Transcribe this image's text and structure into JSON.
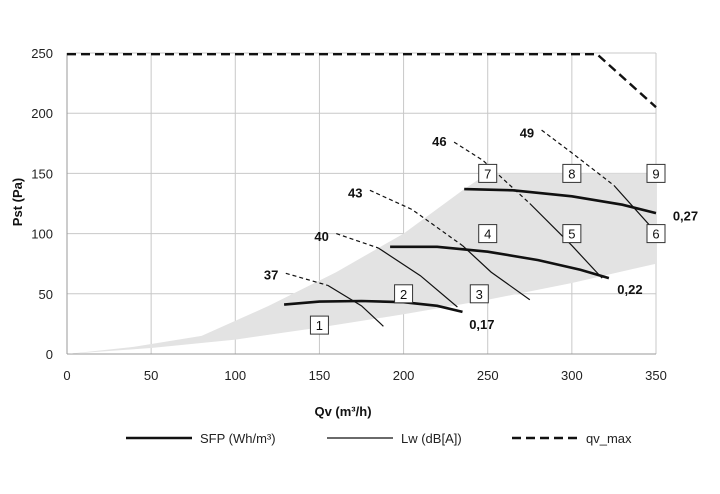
{
  "chart_data": {
    "type": "line",
    "title": "",
    "xlabel": "Qv (m³/h)",
    "ylabel": "Pst (Pa)",
    "xlim": [
      0,
      350
    ],
    "ylim": [
      0,
      250
    ],
    "xticks": [
      "0",
      "50",
      "100",
      "150",
      "200",
      "250",
      "300",
      "350"
    ],
    "yticks": [
      "0",
      "50",
      "100",
      "150",
      "200",
      "250"
    ],
    "grid": true,
    "legend_position": "bottom",
    "operating_area": {
      "upper": [
        [
          0,
          0
        ],
        [
          40,
          6
        ],
        [
          80,
          15
        ],
        [
          120,
          40
        ],
        [
          160,
          68
        ],
        [
          200,
          100
        ],
        [
          236,
          137
        ],
        [
          250,
          150
        ],
        [
          350,
          150
        ]
      ],
      "lower": [
        [
          350,
          75
        ],
        [
          300,
          59
        ],
        [
          250,
          45
        ],
        [
          200,
          33
        ],
        [
          150,
          22
        ],
        [
          100,
          12
        ],
        [
          50,
          5
        ],
        [
          0,
          0
        ]
      ],
      "color": "#e3e3e3"
    },
    "series": [
      {
        "name": "SFP (Wh/m³)",
        "style": "thick",
        "curves": [
          {
            "label": "0,17",
            "points": [
              [
                129,
                41
              ],
              [
                150,
                43.5
              ],
              [
                175,
                44
              ],
              [
                200,
                43
              ],
              [
                220,
                40
              ],
              [
                235,
                35
              ]
            ]
          },
          {
            "label": "0,22",
            "points": [
              [
                192,
                89
              ],
              [
                220,
                89
              ],
              [
                250,
                85
              ],
              [
                280,
                78
              ],
              [
                305,
                70
              ],
              [
                322,
                63
              ]
            ]
          },
          {
            "label": "0,27",
            "points": [
              [
                236,
                137
              ],
              [
                265,
                136
              ],
              [
                300,
                131
              ],
              [
                330,
                124
              ],
              [
                350,
                117
              ]
            ]
          }
        ]
      },
      {
        "name": "Lw (dB[A])",
        "style": "thin",
        "curves": [
          {
            "label": "37",
            "points": [
              [
                130,
                67
              ],
              [
                155,
                57
              ],
              [
                175,
                40
              ],
              [
                188,
                23
              ]
            ]
          },
          {
            "label": "40",
            "points": [
              [
                160,
                100
              ],
              [
                185,
                88
              ],
              [
                210,
                65
              ],
              [
                232,
                39
              ]
            ]
          },
          {
            "label": "43",
            "points": [
              [
                180,
                136
              ],
              [
                205,
                120
              ],
              [
                235,
                90
              ],
              [
                252,
                68
              ],
              [
                275,
                45
              ]
            ]
          },
          {
            "label": "46",
            "points": [
              [
                230,
                176
              ],
              [
                247,
                161
              ],
              [
                275,
                125
              ],
              [
                300,
                90
              ],
              [
                318,
                63
              ]
            ]
          },
          {
            "label": "49",
            "points": [
              [
                282,
                186
              ],
              [
                300,
                167
              ],
              [
                325,
                140
              ],
              [
                350,
                101
              ]
            ]
          }
        ]
      },
      {
        "name": "qv_max",
        "style": "dashed",
        "curves": [
          {
            "label": "",
            "points": [
              [
                0,
                249
              ],
              [
                315,
                249
              ],
              [
                350,
                205
              ]
            ]
          }
        ]
      }
    ],
    "point_markers": [
      {
        "label": "1",
        "x": 150,
        "y": 24
      },
      {
        "label": "2",
        "x": 200,
        "y": 50
      },
      {
        "label": "3",
        "x": 245,
        "y": 50
      },
      {
        "label": "4",
        "x": 250,
        "y": 100
      },
      {
        "label": "5",
        "x": 300,
        "y": 100
      },
      {
        "label": "6",
        "x": 350,
        "y": 100
      },
      {
        "label": "7",
        "x": 250,
        "y": 150
      },
      {
        "label": "8",
        "x": 300,
        "y": 150
      },
      {
        "label": "9",
        "x": 350,
        "y": 150
      }
    ],
    "annotations": [
      {
        "text": "37",
        "x": 117,
        "y": 66
      },
      {
        "text": "40",
        "x": 147,
        "y": 98
      },
      {
        "text": "43",
        "x": 167,
        "y": 134
      },
      {
        "text": "46",
        "x": 217,
        "y": 177
      },
      {
        "text": "49",
        "x": 269,
        "y": 184
      },
      {
        "text": "0,17",
        "x": 239,
        "y": 25
      },
      {
        "text": "0,22",
        "x": 327,
        "y": 54
      },
      {
        "text": "0,27",
        "x": 360,
        "y": 115
      }
    ]
  }
}
